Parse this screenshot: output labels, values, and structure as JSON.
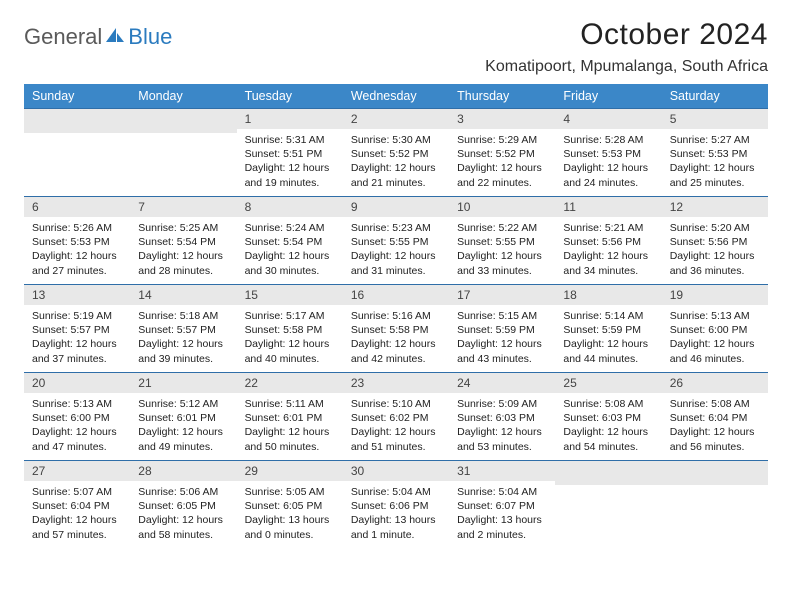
{
  "brand": {
    "part1": "General",
    "part2": "Blue"
  },
  "title": "October 2024",
  "location": "Komatipoort, Mpumalanga, South Africa",
  "colors": {
    "header_bg": "#3b87c8",
    "header_text": "#ffffff",
    "row_divider": "#2f6ea8",
    "daynum_bg": "#e8e8e8",
    "body_text": "#222222",
    "logo_gray": "#5a5a5a",
    "logo_blue": "#2b7bbf"
  },
  "weekday_labels": [
    "Sunday",
    "Monday",
    "Tuesday",
    "Wednesday",
    "Thursday",
    "Friday",
    "Saturday"
  ],
  "weeks": [
    [
      null,
      null,
      {
        "n": "1",
        "sr": "5:31 AM",
        "ss": "5:51 PM",
        "dl": "12 hours and 19 minutes."
      },
      {
        "n": "2",
        "sr": "5:30 AM",
        "ss": "5:52 PM",
        "dl": "12 hours and 21 minutes."
      },
      {
        "n": "3",
        "sr": "5:29 AM",
        "ss": "5:52 PM",
        "dl": "12 hours and 22 minutes."
      },
      {
        "n": "4",
        "sr": "5:28 AM",
        "ss": "5:53 PM",
        "dl": "12 hours and 24 minutes."
      },
      {
        "n": "5",
        "sr": "5:27 AM",
        "ss": "5:53 PM",
        "dl": "12 hours and 25 minutes."
      }
    ],
    [
      {
        "n": "6",
        "sr": "5:26 AM",
        "ss": "5:53 PM",
        "dl": "12 hours and 27 minutes."
      },
      {
        "n": "7",
        "sr": "5:25 AM",
        "ss": "5:54 PM",
        "dl": "12 hours and 28 minutes."
      },
      {
        "n": "8",
        "sr": "5:24 AM",
        "ss": "5:54 PM",
        "dl": "12 hours and 30 minutes."
      },
      {
        "n": "9",
        "sr": "5:23 AM",
        "ss": "5:55 PM",
        "dl": "12 hours and 31 minutes."
      },
      {
        "n": "10",
        "sr": "5:22 AM",
        "ss": "5:55 PM",
        "dl": "12 hours and 33 minutes."
      },
      {
        "n": "11",
        "sr": "5:21 AM",
        "ss": "5:56 PM",
        "dl": "12 hours and 34 minutes."
      },
      {
        "n": "12",
        "sr": "5:20 AM",
        "ss": "5:56 PM",
        "dl": "12 hours and 36 minutes."
      }
    ],
    [
      {
        "n": "13",
        "sr": "5:19 AM",
        "ss": "5:57 PM",
        "dl": "12 hours and 37 minutes."
      },
      {
        "n": "14",
        "sr": "5:18 AM",
        "ss": "5:57 PM",
        "dl": "12 hours and 39 minutes."
      },
      {
        "n": "15",
        "sr": "5:17 AM",
        "ss": "5:58 PM",
        "dl": "12 hours and 40 minutes."
      },
      {
        "n": "16",
        "sr": "5:16 AM",
        "ss": "5:58 PM",
        "dl": "12 hours and 42 minutes."
      },
      {
        "n": "17",
        "sr": "5:15 AM",
        "ss": "5:59 PM",
        "dl": "12 hours and 43 minutes."
      },
      {
        "n": "18",
        "sr": "5:14 AM",
        "ss": "5:59 PM",
        "dl": "12 hours and 44 minutes."
      },
      {
        "n": "19",
        "sr": "5:13 AM",
        "ss": "6:00 PM",
        "dl": "12 hours and 46 minutes."
      }
    ],
    [
      {
        "n": "20",
        "sr": "5:13 AM",
        "ss": "6:00 PM",
        "dl": "12 hours and 47 minutes."
      },
      {
        "n": "21",
        "sr": "5:12 AM",
        "ss": "6:01 PM",
        "dl": "12 hours and 49 minutes."
      },
      {
        "n": "22",
        "sr": "5:11 AM",
        "ss": "6:01 PM",
        "dl": "12 hours and 50 minutes."
      },
      {
        "n": "23",
        "sr": "5:10 AM",
        "ss": "6:02 PM",
        "dl": "12 hours and 51 minutes."
      },
      {
        "n": "24",
        "sr": "5:09 AM",
        "ss": "6:03 PM",
        "dl": "12 hours and 53 minutes."
      },
      {
        "n": "25",
        "sr": "5:08 AM",
        "ss": "6:03 PM",
        "dl": "12 hours and 54 minutes."
      },
      {
        "n": "26",
        "sr": "5:08 AM",
        "ss": "6:04 PM",
        "dl": "12 hours and 56 minutes."
      }
    ],
    [
      {
        "n": "27",
        "sr": "5:07 AM",
        "ss": "6:04 PM",
        "dl": "12 hours and 57 minutes."
      },
      {
        "n": "28",
        "sr": "5:06 AM",
        "ss": "6:05 PM",
        "dl": "12 hours and 58 minutes."
      },
      {
        "n": "29",
        "sr": "5:05 AM",
        "ss": "6:05 PM",
        "dl": "13 hours and 0 minutes."
      },
      {
        "n": "30",
        "sr": "5:04 AM",
        "ss": "6:06 PM",
        "dl": "13 hours and 1 minute."
      },
      {
        "n": "31",
        "sr": "5:04 AM",
        "ss": "6:07 PM",
        "dl": "13 hours and 2 minutes."
      },
      null,
      null
    ]
  ],
  "labels": {
    "sunrise": "Sunrise:",
    "sunset": "Sunset:",
    "daylight": "Daylight:"
  }
}
